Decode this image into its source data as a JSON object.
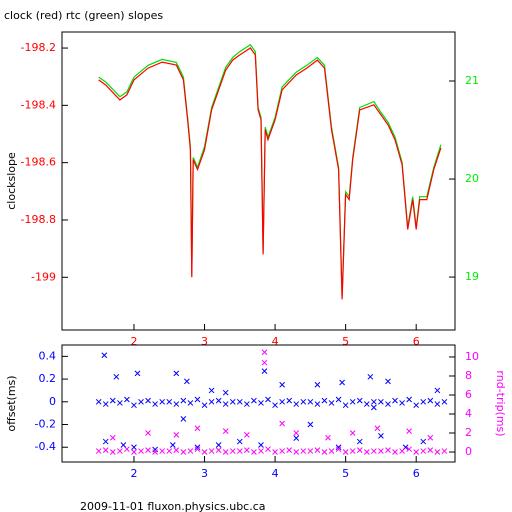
{
  "footer": "2009-11-01 fluxon.physics.ubc.ca",
  "chart_data": [
    {
      "type": "line",
      "title": "clock (red) rtc (green) slopes",
      "ylabel": "clockslope",
      "xlim": [
        0.98,
        6.55
      ],
      "xticks": [
        2,
        3,
        4,
        5,
        6
      ],
      "xtick_color": "#ff0000",
      "ylim": [
        -199.184,
        -198.144
      ],
      "yticks": [
        -198.2,
        -198.4,
        -198.6,
        -198.8,
        -199
      ],
      "ytick_color": "#ff0000",
      "y2lim": [
        18.46,
        21.5
      ],
      "y2ticks": [
        19,
        20,
        21
      ],
      "y2tick_color": "#00ee00",
      "x": [
        1.5,
        1.6,
        1.8,
        1.9,
        2.0,
        2.2,
        2.4,
        2.6,
        2.7,
        2.76,
        2.8,
        2.82,
        2.84,
        2.9,
        3.0,
        3.1,
        3.3,
        3.4,
        3.5,
        3.65,
        3.72,
        3.76,
        3.8,
        3.83,
        3.86,
        3.9,
        4.0,
        4.1,
        4.3,
        4.45,
        4.6,
        4.7,
        4.8,
        4.9,
        4.95,
        5.0,
        5.05,
        5.1,
        5.2,
        5.4,
        5.5,
        5.6,
        5.7,
        5.8,
        5.88,
        5.95,
        6.0,
        6.05,
        6.15,
        6.25,
        6.35
      ],
      "series": [
        {
          "name": "rtc",
          "color": "#00dd00",
          "axis": "y2",
          "values": [
            21.04,
            20.99,
            20.84,
            20.89,
            21.04,
            21.16,
            21.22,
            21.19,
            21.04,
            20.63,
            20.33,
            19.02,
            20.22,
            20.12,
            20.33,
            20.73,
            21.14,
            21.24,
            21.3,
            21.37,
            21.3,
            20.73,
            20.63,
            19.26,
            20.53,
            20.43,
            20.63,
            20.94,
            21.09,
            21.16,
            21.24,
            21.16,
            20.53,
            20.12,
            18.8,
            19.87,
            19.82,
            20.22,
            20.73,
            20.79,
            20.68,
            20.58,
            20.43,
            20.17,
            19.51,
            19.82,
            19.51,
            19.82,
            19.82,
            20.12,
            20.35
          ]
        },
        {
          "name": "clock",
          "color": "#ff0000",
          "values": [
            -198.311,
            -198.329,
            -198.381,
            -198.363,
            -198.311,
            -198.27,
            -198.249,
            -198.259,
            -198.311,
            -198.45,
            -198.555,
            -199,
            -198.59,
            -198.624,
            -198.555,
            -198.416,
            -198.277,
            -198.242,
            -198.224,
            -198.2,
            -198.224,
            -198.416,
            -198.45,
            -198.92,
            -198.485,
            -198.52,
            -198.45,
            -198.346,
            -198.294,
            -198.27,
            -198.242,
            -198.27,
            -198.485,
            -198.624,
            -199.077,
            -198.711,
            -198.729,
            -198.59,
            -198.416,
            -198.398,
            -198.433,
            -198.468,
            -198.52,
            -198.607,
            -198.833,
            -198.729,
            -198.833,
            -198.729,
            -198.729,
            -198.624,
            -198.548
          ]
        }
      ]
    },
    {
      "type": "scatter",
      "ylabel": "offset(ms)",
      "y2label": "rnd-trip(ms)",
      "y2label_color": "#ff00ff",
      "xlim": [
        0.98,
        6.55
      ],
      "xticks": [
        2,
        3,
        4,
        5,
        6
      ],
      "xtick_color": "#0000ff",
      "ylim": [
        -0.53,
        0.5
      ],
      "yticks": [
        0.4,
        0.2,
        0,
        -0.2,
        -0.4
      ],
      "ytick_color": "#0000ff",
      "y2lim": [
        -1.05,
        11.26
      ],
      "y2ticks": [
        0,
        2,
        4,
        6,
        8,
        10
      ],
      "y2tick_color": "#ff00ff",
      "series": [
        {
          "name": "offset",
          "color": "#0000ff",
          "x": [
            1.5,
            1.6,
            1.7,
            1.8,
            1.9,
            2.0,
            2.1,
            2.2,
            2.3,
            2.4,
            2.5,
            2.6,
            2.7,
            2.8,
            2.9,
            3.0,
            3.1,
            3.2,
            3.3,
            3.4,
            3.5,
            3.6,
            3.7,
            3.8,
            3.9,
            4.0,
            4.1,
            4.2,
            4.3,
            4.4,
            4.5,
            4.6,
            4.7,
            4.8,
            4.9,
            5.0,
            5.1,
            5.2,
            5.3,
            5.4,
            5.5,
            5.6,
            5.7,
            5.8,
            5.9,
            6.0,
            6.1,
            6.2,
            6.3,
            6.4,
            1.58,
            1.75,
            2.05,
            2.6,
            2.75,
            3.1,
            3.3,
            3.85,
            4.1,
            4.6,
            4.95,
            5.35,
            5.6,
            6.3,
            1.6,
            1.85,
            2.0,
            2.3,
            2.55,
            2.9,
            3.2,
            3.5,
            3.8,
            4.3,
            4.9,
            5.2,
            5.5,
            5.85,
            6.1,
            2.7,
            4.5,
            5.4
          ],
          "values": [
            0,
            -0.02,
            0.01,
            -0.01,
            0.02,
            -0.03,
            0,
            0.01,
            -0.02,
            0,
            0,
            -0.02,
            0.01,
            -0.01,
            0.02,
            -0.03,
            0,
            0.01,
            -0.02,
            0,
            0,
            -0.02,
            0.01,
            -0.01,
            0.02,
            -0.03,
            0,
            0.01,
            -0.02,
            0,
            0,
            -0.02,
            0.01,
            -0.01,
            0.02,
            -0.03,
            0,
            0.01,
            -0.02,
            0,
            0,
            -0.02,
            0.01,
            -0.01,
            0.02,
            -0.03,
            0,
            0.01,
            -0.02,
            0,
            0.41,
            0.22,
            0.25,
            0.25,
            0.18,
            0.1,
            0.08,
            0.27,
            0.15,
            0.15,
            0.17,
            0.22,
            0.18,
            0.1,
            -0.35,
            -0.38,
            -0.4,
            -0.42,
            -0.38,
            -0.4,
            -0.38,
            -0.35,
            -0.38,
            -0.32,
            -0.4,
            -0.35,
            -0.3,
            -0.4,
            -0.35,
            -0.15,
            -0.2,
            -0.05
          ]
        },
        {
          "name": "rnd-trip",
          "color": "#ff00ff",
          "axis": "y2",
          "x": [
            1.5,
            1.6,
            1.7,
            1.8,
            1.9,
            2.0,
            2.1,
            2.2,
            2.3,
            2.4,
            2.5,
            2.6,
            2.7,
            2.8,
            2.9,
            3.0,
            3.1,
            3.2,
            3.3,
            3.4,
            3.5,
            3.6,
            3.7,
            3.8,
            3.9,
            4.0,
            4.1,
            4.2,
            4.3,
            4.4,
            4.5,
            4.6,
            4.7,
            4.8,
            4.9,
            5.0,
            5.1,
            5.2,
            5.3,
            5.4,
            5.5,
            5.6,
            5.7,
            5.8,
            5.9,
            6.0,
            6.1,
            6.2,
            6.3,
            6.4,
            3.85,
            3.85,
            1.7,
            2.2,
            2.6,
            2.9,
            3.3,
            3.6,
            4.1,
            4.3,
            4.75,
            5.1,
            5.45,
            5.9,
            6.2
          ],
          "values": [
            0.1,
            0.2,
            0,
            0.1,
            0.3,
            0,
            0.1,
            0.2,
            0,
            0.1,
            0.1,
            0.2,
            0,
            0.1,
            0.3,
            0,
            0.1,
            0.2,
            0,
            0.1,
            0.1,
            0.2,
            0,
            0.1,
            0.3,
            0,
            0.1,
            0.2,
            0,
            0.1,
            0.1,
            0.2,
            0,
            0.1,
            0.3,
            0,
            0.1,
            0.2,
            0,
            0.1,
            0.1,
            0.2,
            0,
            0.1,
            0.3,
            0,
            0.1,
            0.2,
            0,
            0.1,
            10.5,
            9.4,
            1.5,
            2,
            1.8,
            2.5,
            2.2,
            1.8,
            3,
            2,
            1.5,
            2,
            2.5,
            2.2,
            1.5
          ]
        }
      ]
    }
  ]
}
